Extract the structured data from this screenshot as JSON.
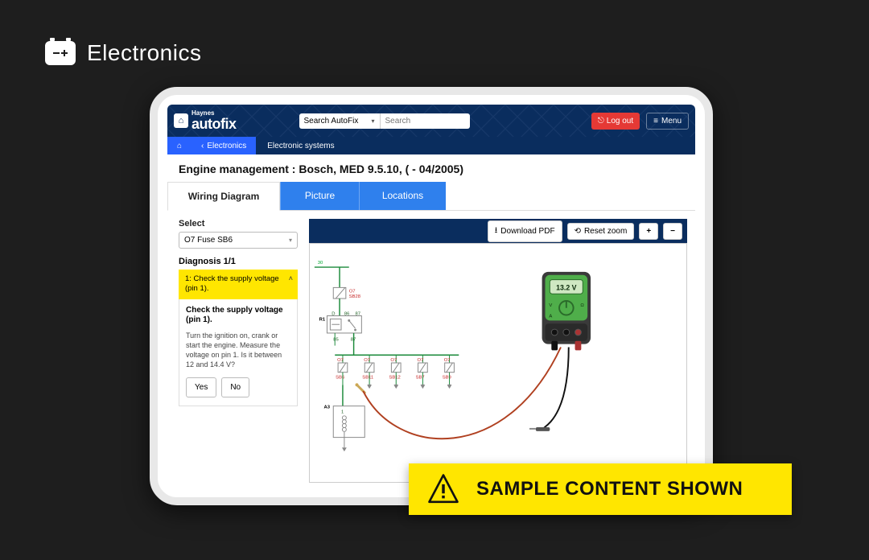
{
  "page": {
    "heading": "Electronics"
  },
  "brand": {
    "super": "Haynes",
    "name": "autofix"
  },
  "search": {
    "scope": "Search AutoFix",
    "placeholder": "Search"
  },
  "topnav": {
    "logout": "Log out",
    "menu": "Menu"
  },
  "breadcrumb": {
    "back": "Electronics",
    "current": "Electronic systems"
  },
  "title": "Engine management :  Bosch, MED 9.5.10, ( - 04/2005)",
  "tabs": {
    "t1": "Wiring Diagram",
    "t2": "Picture",
    "t3": "Locations"
  },
  "sidebar": {
    "select_label": "Select",
    "select_value": "O7  Fuse  SB6",
    "diagnosis_label": "Diagnosis 1/1",
    "step_header": "1: Check the supply voltage (pin 1).",
    "step_title": "Check the supply voltage (pin 1).",
    "step_body": "Turn the ignition on, crank or start the engine. Measure the voltage on pin 1. Is it between 12 and 14.4 V?",
    "yes": "Yes",
    "no": "No"
  },
  "toolbar": {
    "download": "Download PDF",
    "reset": "Reset zoom",
    "plus": "+",
    "minus": "−"
  },
  "diagram": {
    "bus_label": "30",
    "top_fuse": {
      "ref": "O7",
      "code": "SB28"
    },
    "relay_ref": "R1",
    "relay_pins": [
      "D",
      "86",
      "87"
    ],
    "lower_pins": [
      "85",
      "87"
    ],
    "fuse_row": [
      {
        "ref": "O7",
        "code": "SB6"
      },
      {
        "ref": "O7",
        "code": "SB11"
      },
      {
        "ref": "O7",
        "code": "SB12"
      },
      {
        "ref": "O7",
        "code": "SB7"
      },
      {
        "ref": "O7",
        "code": "SB9"
      }
    ],
    "module_ref": "A3",
    "module_pin": "1",
    "meter_reading": "13.2 V",
    "colors": {
      "wire_green": "#1b8a3a",
      "wire_red": "#c62828",
      "wire_black": "#111111",
      "probe_red": "#b04020",
      "meter_body": "#3a3a3a",
      "meter_face": "#4fae4a",
      "meter_screen": "#cfe8c2"
    }
  },
  "banner": {
    "text": "SAMPLE CONTENT SHOWN"
  }
}
